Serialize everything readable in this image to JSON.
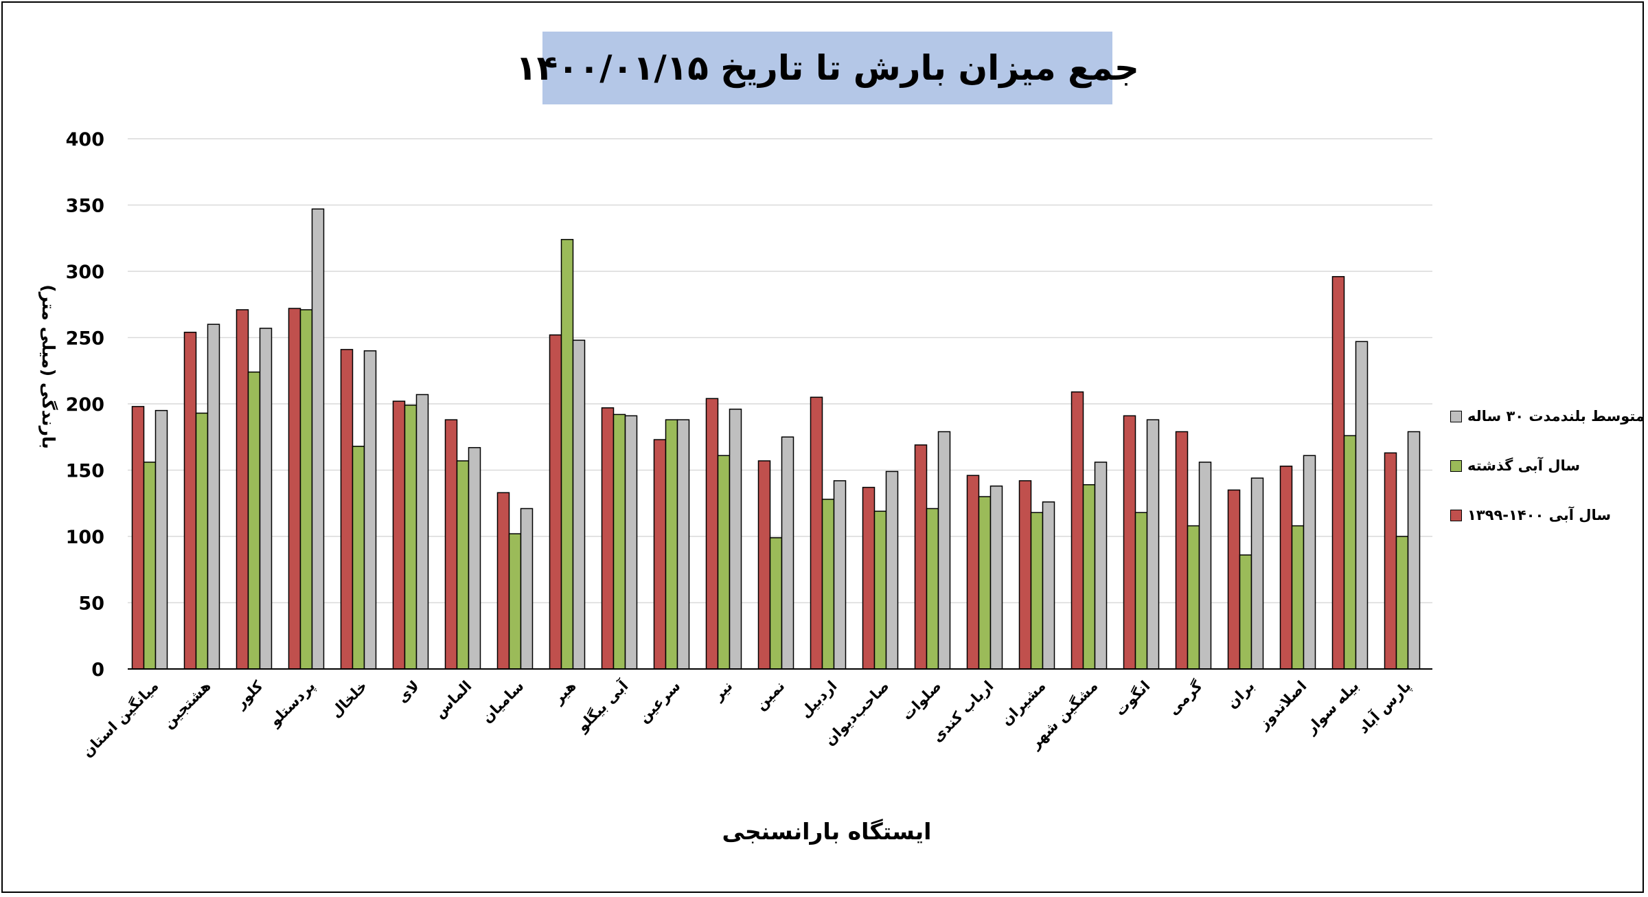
{
  "chart_data": {
    "type": "bar",
    "title": "جمع میزان بارش تا تاریخ  ۱۴۰۰/۰۱/۱۵",
    "xlabel": "ایستگاه بارانسنجی",
    "ylabel": "بارندگی (میلی متر)",
    "ylim": [
      0,
      400
    ],
    "yticks": [
      0,
      50,
      100,
      150,
      200,
      250,
      300,
      350,
      400
    ],
    "grid": true,
    "legend_position": "right",
    "categories": [
      "میانگین استان",
      "هشتجین",
      "کلور",
      "پردستلو",
      "خلخال",
      "لای",
      "الماس",
      "سامیان",
      "هیر",
      "آبی بیگلو",
      "سرعین",
      "نیر",
      "نمین",
      "اردبیل",
      "صاحب‌دیوان",
      "صلوات",
      "ارباب کندی",
      "مشیران",
      "مشگین شهر",
      "انگوت",
      "گرمی",
      "بران",
      "اصلاندوز",
      "بیله سوار",
      "پارس آباد"
    ],
    "series": [
      {
        "name": "سال آبی ۱۴۰۰-۱۳۹۹",
        "color": "#c0504d",
        "values": [
          198,
          254,
          271,
          272,
          241,
          202,
          188,
          133,
          252,
          197,
          173,
          204,
          157,
          205,
          137,
          169,
          146,
          142,
          209,
          191,
          179,
          135,
          153,
          296,
          163
        ]
      },
      {
        "name": "سال آبی گذشته",
        "color": "#9bbb59",
        "values": [
          156,
          193,
          224,
          271,
          168,
          199,
          157,
          102,
          324,
          192,
          188,
          161,
          99,
          128,
          119,
          121,
          130,
          118,
          139,
          118,
          108,
          86,
          108,
          176,
          100
        ]
      },
      {
        "name": "متوسط بلندمدت ۳۰ ساله",
        "color": "#bfbfbf",
        "values": [
          195,
          260,
          257,
          347,
          240,
          207,
          167,
          121,
          248,
          191,
          188,
          196,
          175,
          142,
          149,
          179,
          138,
          126,
          156,
          188,
          156,
          144,
          161,
          247,
          179
        ]
      }
    ]
  }
}
